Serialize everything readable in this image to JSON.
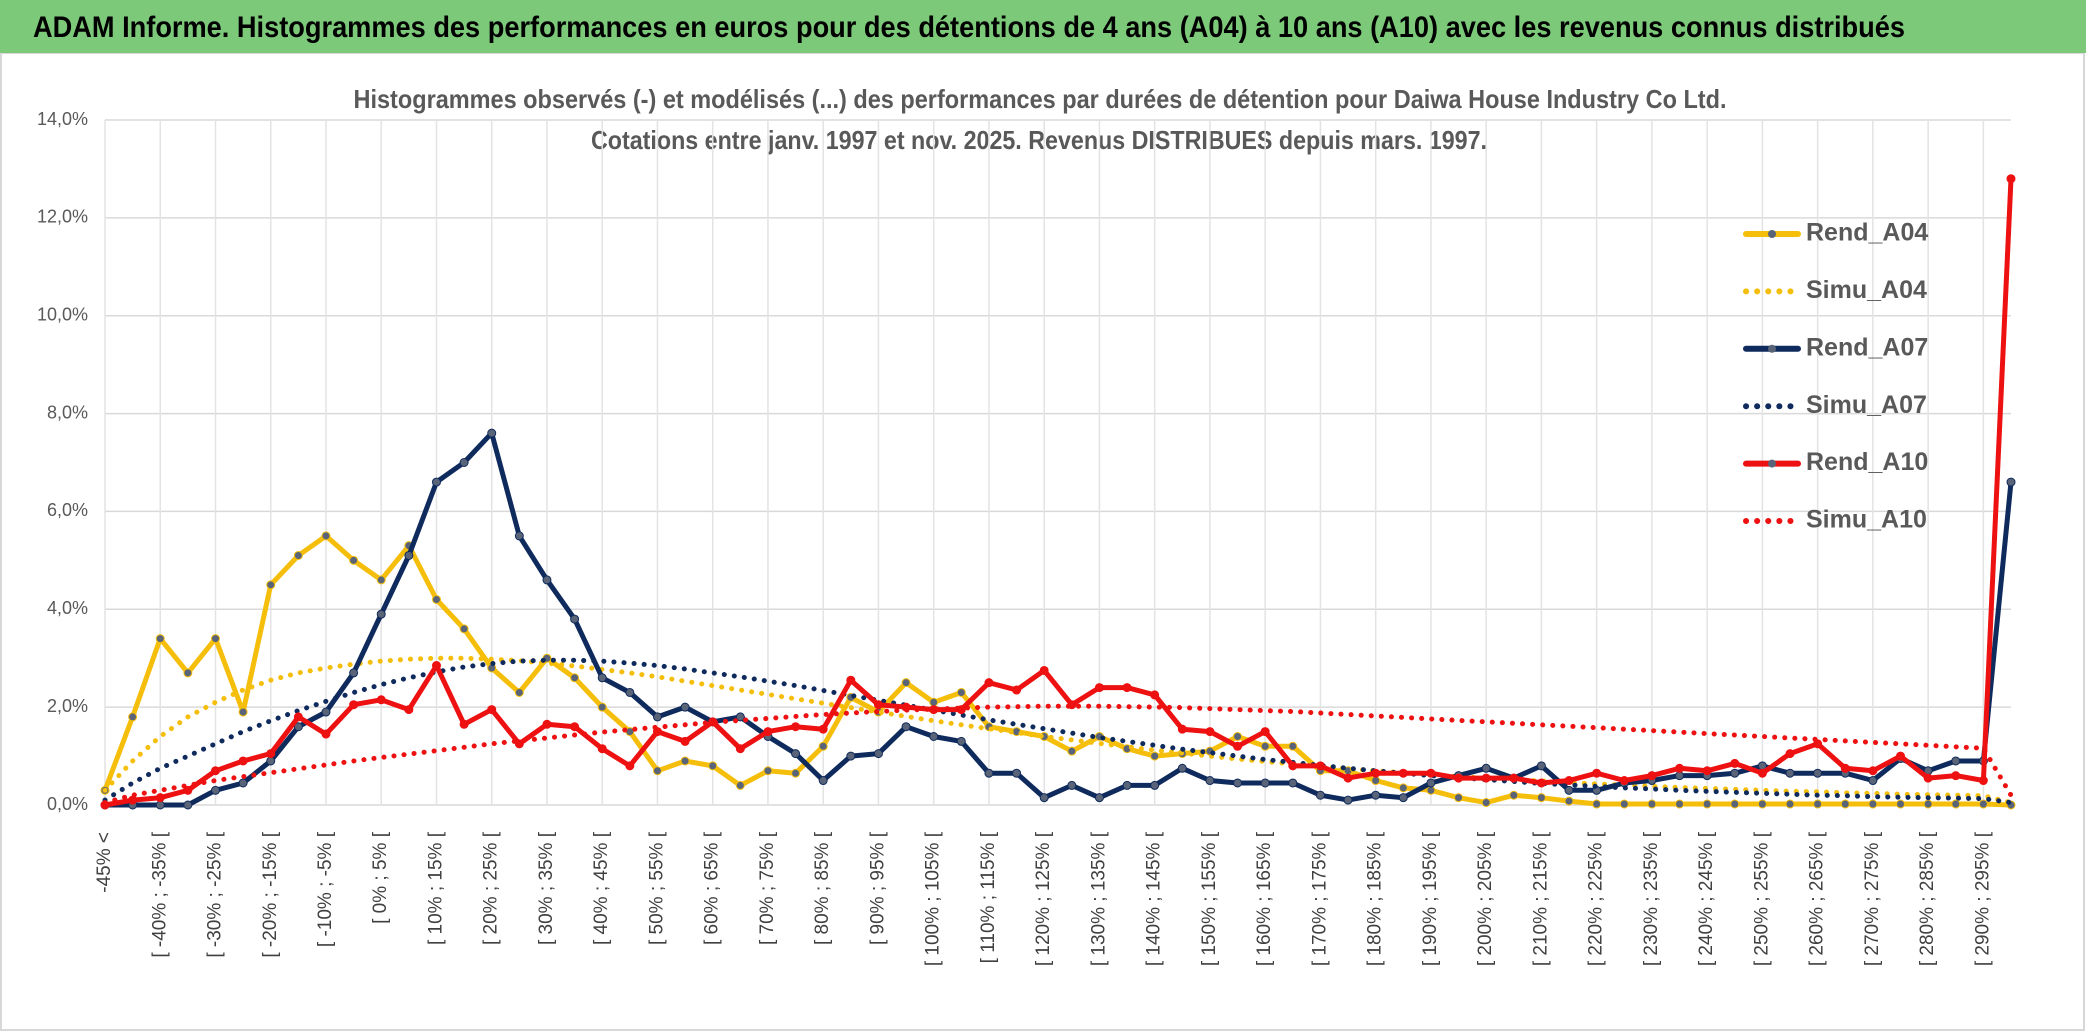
{
  "header": {
    "title": "ADAM Informe. Histogrammes des performances en euros pour des détentions de 4 ans (A04) à 10 ans (A10) avec les revenus connus distribués"
  },
  "chart_data": {
    "type": "line",
    "title": "Histogrammes observés (-) et modélisés (...) des performances par durées de détention pour Daiwa House Industry Co Ltd.",
    "subtitle": "Cotations entre janv. 1997 et nov. 2025. Revenus DISTRIBUES depuis mars. 1997.",
    "categories": [
      "-45% <",
      null,
      "[ -40% ; -35% [",
      null,
      "[ -30% ; -25% [",
      null,
      "[ -20% ; -15% [",
      null,
      "[ -10% ; -5% [",
      null,
      "[ 0% ; 5% [",
      null,
      "[ 10% ; 15% [",
      null,
      "[ 20% ; 25% [",
      null,
      "[ 30% ; 35% [",
      null,
      "[ 40% ; 45% [",
      null,
      "[ 50% ; 55% [",
      null,
      "[ 60% ; 65% [",
      null,
      "[ 70% ; 75% [",
      null,
      "[ 80% ; 85% [",
      null,
      "[ 90% ; 95% [",
      null,
      "[ 100% ; 105% [",
      null,
      "[ 110% ; 115% [",
      null,
      "[ 120% ; 125% [",
      null,
      "[ 130% ; 135% [",
      null,
      "[ 140% ; 145% [",
      null,
      "[ 150% ; 155% [",
      null,
      "[ 160% ; 165% [",
      null,
      "[ 170% ; 175% [",
      null,
      "[ 180% ; 185% [",
      null,
      "[ 190% ; 195% [",
      null,
      "[ 200% ; 205% [",
      null,
      "[ 210% ; 215% [",
      null,
      "[ 220% ; 225% [",
      null,
      "[ 230% ; 235% [",
      null,
      "[ 240% ; 245% [",
      null,
      "[ 250% ; 255% [",
      null,
      "[ 260% ; 265% [",
      null,
      "[ 270% ; 275% [",
      null,
      "[ 280% ; 285% [",
      null,
      "[ 290% ; 295% [",
      null
    ],
    "series": [
      {
        "name": "Rend_A04",
        "color": "#f5be0a",
        "style": "solid",
        "markers": true,
        "values": [
          0.3,
          1.8,
          3.4,
          2.7,
          3.4,
          1.9,
          4.5,
          5.1,
          5.5,
          5.0,
          4.6,
          5.3,
          4.2,
          3.6,
          2.8,
          2.3,
          3.0,
          2.6,
          2.0,
          1.5,
          0.7,
          0.9,
          0.8,
          0.4,
          0.7,
          0.65,
          1.2,
          2.2,
          1.9,
          2.5,
          2.1,
          2.3,
          1.6,
          1.5,
          1.4,
          1.1,
          1.4,
          1.15,
          1.0,
          1.05,
          1.1,
          1.4,
          1.2,
          1.2,
          0.7,
          0.7,
          0.5,
          0.35,
          0.3,
          0.15,
          0.05,
          0.2,
          0.15,
          0.08,
          0.02,
          0.02,
          0.02,
          0.02,
          0.02,
          0.02,
          0.02,
          0.02,
          0.02,
          0.02,
          0.02,
          0.02,
          0.02,
          0.02,
          0.02,
          0.0
        ]
      },
      {
        "name": "Simu_A04",
        "color": "#f5be0a",
        "style": "dotted",
        "markers": false,
        "values": [
          0.3,
          0.9,
          1.4,
          1.8,
          2.1,
          2.35,
          2.55,
          2.7,
          2.8,
          2.88,
          2.94,
          2.98,
          3.0,
          3.0,
          2.98,
          2.95,
          2.9,
          2.84,
          2.77,
          2.7,
          2.62,
          2.53,
          2.44,
          2.35,
          2.26,
          2.17,
          2.08,
          1.99,
          1.9,
          1.81,
          1.72,
          1.64,
          1.56,
          1.48,
          1.4,
          1.33,
          1.26,
          1.19,
          1.12,
          1.06,
          1.0,
          0.94,
          0.89,
          0.84,
          0.79,
          0.74,
          0.7,
          0.66,
          0.62,
          0.58,
          0.55,
          0.52,
          0.49,
          0.46,
          0.43,
          0.41,
          0.38,
          0.36,
          0.34,
          0.32,
          0.3,
          0.28,
          0.27,
          0.25,
          0.24,
          0.22,
          0.21,
          0.2,
          0.19,
          0.05
        ]
      },
      {
        "name": "Rend_A07",
        "color": "#0f2a5c",
        "style": "solid",
        "markers": true,
        "values": [
          0.0,
          0.0,
          0.0,
          0.0,
          0.3,
          0.45,
          0.9,
          1.6,
          1.9,
          2.7,
          3.9,
          5.1,
          6.6,
          7.0,
          7.6,
          5.5,
          4.6,
          3.8,
          2.6,
          2.3,
          1.8,
          2.0,
          1.7,
          1.8,
          1.4,
          1.05,
          0.5,
          1.0,
          1.05,
          1.6,
          1.4,
          1.3,
          0.65,
          0.65,
          0.15,
          0.4,
          0.15,
          0.4,
          0.4,
          0.75,
          0.5,
          0.45,
          0.45,
          0.45,
          0.2,
          0.1,
          0.2,
          0.15,
          0.45,
          0.6,
          0.75,
          0.55,
          0.8,
          0.3,
          0.3,
          0.45,
          0.5,
          0.6,
          0.6,
          0.65,
          0.8,
          0.65,
          0.65,
          0.65,
          0.5,
          0.95,
          0.7,
          0.9,
          0.9,
          6.6
        ]
      },
      {
        "name": "Simu_A07",
        "color": "#0f2a5c",
        "style": "dotted",
        "markers": false,
        "values": [
          0.1,
          0.45,
          0.75,
          1.0,
          1.25,
          1.5,
          1.72,
          1.93,
          2.12,
          2.3,
          2.46,
          2.6,
          2.72,
          2.82,
          2.89,
          2.94,
          2.96,
          2.96,
          2.94,
          2.9,
          2.85,
          2.78,
          2.7,
          2.62,
          2.53,
          2.44,
          2.34,
          2.24,
          2.14,
          2.04,
          1.94,
          1.84,
          1.74,
          1.65,
          1.56,
          1.47,
          1.38,
          1.3,
          1.22,
          1.14,
          1.07,
          1.0,
          0.93,
          0.87,
          0.81,
          0.75,
          0.7,
          0.65,
          0.6,
          0.56,
          0.52,
          0.48,
          0.44,
          0.41,
          0.38,
          0.35,
          0.33,
          0.3,
          0.28,
          0.26,
          0.24,
          0.22,
          0.2,
          0.19,
          0.17,
          0.16,
          0.15,
          0.14,
          0.13,
          0.05
        ]
      },
      {
        "name": "Rend_A10",
        "color": "#ee1111",
        "style": "solid",
        "markers": true,
        "values": [
          0.0,
          0.1,
          0.15,
          0.3,
          0.7,
          0.9,
          1.05,
          1.8,
          1.45,
          2.05,
          2.15,
          1.95,
          2.85,
          1.65,
          1.95,
          1.25,
          1.65,
          1.6,
          1.15,
          0.8,
          1.5,
          1.3,
          1.7,
          1.15,
          1.5,
          1.6,
          1.55,
          2.55,
          2.05,
          2.0,
          1.95,
          1.95,
          2.5,
          2.35,
          2.75,
          2.05,
          2.4,
          2.4,
          2.25,
          1.55,
          1.5,
          1.2,
          1.5,
          0.8,
          0.8,
          0.55,
          0.65,
          0.65,
          0.65,
          0.55,
          0.55,
          0.55,
          0.45,
          0.5,
          0.65,
          0.5,
          0.6,
          0.75,
          0.7,
          0.85,
          0.65,
          1.05,
          1.25,
          0.75,
          0.7,
          1.0,
          0.55,
          0.6,
          0.5,
          12.8
        ]
      },
      {
        "name": "Simu_A10",
        "color": "#ee1111",
        "style": "dotted",
        "markers": false,
        "values": [
          0.05,
          0.2,
          0.3,
          0.4,
          0.5,
          0.58,
          0.66,
          0.74,
          0.82,
          0.9,
          0.97,
          1.04,
          1.11,
          1.18,
          1.25,
          1.31,
          1.37,
          1.43,
          1.49,
          1.54,
          1.59,
          1.64,
          1.69,
          1.73,
          1.77,
          1.81,
          1.85,
          1.88,
          1.91,
          1.94,
          1.96,
          1.98,
          2.0,
          2.01,
          2.02,
          2.02,
          2.02,
          2.01,
          2.0,
          1.99,
          1.97,
          1.95,
          1.93,
          1.91,
          1.88,
          1.85,
          1.82,
          1.79,
          1.76,
          1.73,
          1.7,
          1.67,
          1.64,
          1.61,
          1.58,
          1.55,
          1.52,
          1.49,
          1.46,
          1.43,
          1.4,
          1.37,
          1.34,
          1.31,
          1.28,
          1.25,
          1.22,
          1.19,
          1.16,
          0.2
        ]
      }
    ],
    "ylim": [
      0,
      14
    ],
    "yticks": [
      {
        "value": 0,
        "label": "0,0%"
      },
      {
        "value": 2,
        "label": "2,0%"
      },
      {
        "value": 4,
        "label": "4,0%"
      },
      {
        "value": 6,
        "label": "6,0%"
      },
      {
        "value": 8,
        "label": "8,0%"
      },
      {
        "value": 10,
        "label": "10,0%"
      },
      {
        "value": 12,
        "label": "12,0%"
      },
      {
        "value": 14,
        "label": "14,0%"
      }
    ],
    "grid": true,
    "legend": "right"
  }
}
